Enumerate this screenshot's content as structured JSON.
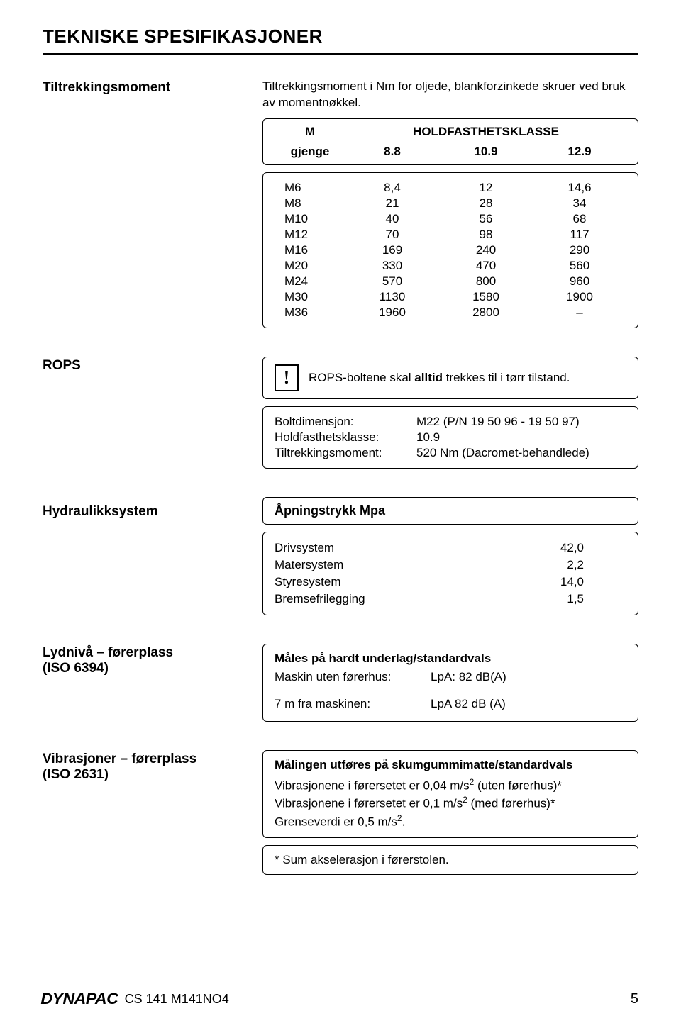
{
  "title": "TEKNISKE SPESIFIKASJONER",
  "torque": {
    "heading": "Tiltrekkingsmoment",
    "intro": "Tiltrekkingsmoment i Nm for oljede, blankforzinkede skruer ved bruk av momentnøkkel.",
    "header_m": "M",
    "header_klasse": "HOLDFASTHETSKLASSE",
    "gjenge": "gjenge",
    "cols": [
      "8.8",
      "10.9",
      "12.9"
    ],
    "rows": [
      {
        "m": "M6",
        "v": [
          "8,4",
          "12",
          "14,6"
        ]
      },
      {
        "m": "M8",
        "v": [
          "21",
          "28",
          "34"
        ]
      },
      {
        "m": "M10",
        "v": [
          "40",
          "56",
          "68"
        ]
      },
      {
        "m": "M12",
        "v": [
          "70",
          "98",
          "117"
        ]
      },
      {
        "m": "M16",
        "v": [
          "169",
          "240",
          "290"
        ]
      },
      {
        "m": "M20",
        "v": [
          "330",
          "470",
          "560"
        ]
      },
      {
        "m": "M24",
        "v": [
          "570",
          "800",
          "960"
        ]
      },
      {
        "m": "M30",
        "v": [
          "1130",
          "1580",
          "1900"
        ]
      },
      {
        "m": "M36",
        "v": [
          "1960",
          "2800",
          "–"
        ]
      }
    ]
  },
  "rops": {
    "heading": "ROPS",
    "warn_symbol": "!",
    "text_pre": "ROPS-boltene skal ",
    "text_bold": "alltid",
    "text_post": " trekkes til i tørr tilstand.",
    "bolt": {
      "dim_label": "Boltdimensjon:",
      "dim_value": "M22 (P/N 19 50 96 - 19 50 97)",
      "class_label": "Holdfasthetsklasse:",
      "class_value": "10.9",
      "torque_label": "Tiltrekkingsmoment:",
      "torque_value": "520 Nm (Dacromet-behandlede)"
    }
  },
  "hydraulics": {
    "heading": "Hydraulikksystem",
    "box_head": "Åpningstrykk Mpa",
    "rows": [
      {
        "l": "Drivsystem",
        "v": "42,0"
      },
      {
        "l": "Matersystem",
        "v": "2,2"
      },
      {
        "l": "Styresystem",
        "v": "14,0"
      },
      {
        "l": "Bremsefrilegging",
        "v": "1,5"
      }
    ]
  },
  "noise": {
    "heading1": "Lydnivå – førerplass",
    "heading2": "(ISO 6394)",
    "box_head": "Måles på hardt underlag/standardvals",
    "line1_l": "Maskin uten førerhus:",
    "line1_r": "LpA: 82 dB(A)",
    "line2_l": "7 m fra maskinen:",
    "line2_r": "LpA 82 dB (A)"
  },
  "vibration": {
    "heading1": "Vibrasjoner – førerplass",
    "heading2": "(ISO 2631)",
    "box_head": "Målingen utføres på skumgummimatte/standardvals",
    "line1a": "Vibrasjonene i førersetet er 0,04 m/s",
    "line1b": " (uten førerhus)*",
    "line2a": "Vibrasjonene i førersetet er 0,1 m/s",
    "line2b": " (med førerhus)*",
    "line3a": "Grenseverdi er 0,5 m/s",
    "line3b": ".",
    "sup": "2",
    "footnote": "* Sum akselerasjon i førerstolen."
  },
  "footer": {
    "logo": "DYNAPAC",
    "code": "CS 141 M141NO4",
    "page": "5"
  }
}
